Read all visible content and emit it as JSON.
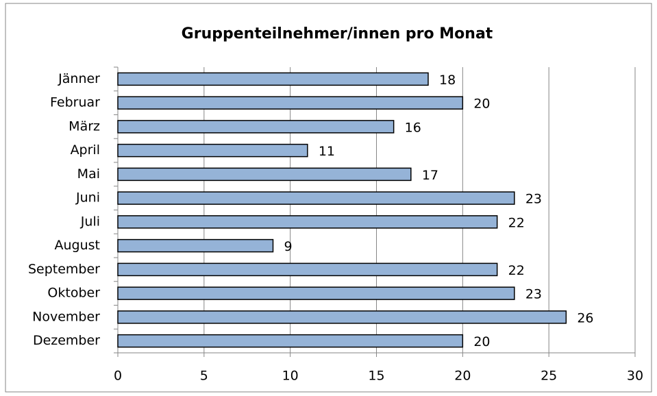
{
  "chart_data": {
    "type": "barh",
    "title": "Gruppenteilnehmer/innen pro Monat",
    "categories": [
      "Jänner",
      "Februar",
      "März",
      "April",
      "Mai",
      "Juni",
      "Juli",
      "August",
      "September",
      "Oktober",
      "November",
      "Dezember"
    ],
    "values": [
      18,
      20,
      16,
      11,
      17,
      23,
      22,
      9,
      22,
      23,
      26,
      20
    ],
    "color": "#95b3d7",
    "xlim": [
      0,
      30
    ],
    "xticks": [
      0,
      5,
      10,
      15,
      20,
      25,
      30
    ],
    "grid": true
  }
}
